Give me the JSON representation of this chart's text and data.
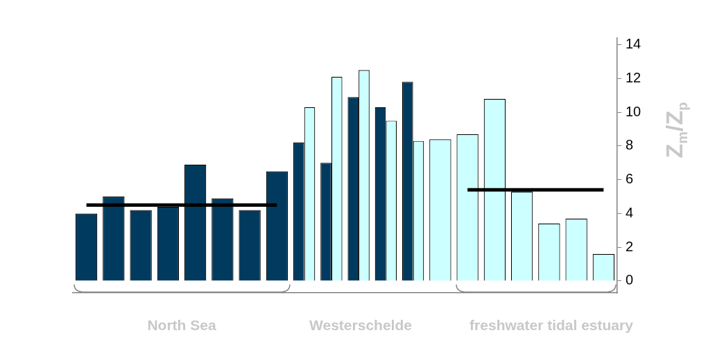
{
  "chart_data": {
    "type": "bar",
    "ylabel": "Z$_{m}$/Z$_{p}$",
    "categories": [
      null,
      null,
      null,
      null,
      null,
      null,
      null,
      null,
      null,
      null,
      null,
      null,
      null,
      null,
      null,
      null,
      null,
      null,
      null,
      null
    ],
    "series": [
      {
        "color": "#003b5f",
        "values": [
          4.0,
          5.0,
          4.2,
          4.4,
          6.9,
          4.9,
          4.2,
          6.5,
          8.2,
          7.0,
          10.9,
          10.3,
          11.8,
          null,
          null,
          null,
          null,
          null,
          null,
          null
        ]
      },
      {
        "color": "#ccffff",
        "values": [
          null,
          null,
          null,
          null,
          null,
          null,
          null,
          null,
          10.3,
          12.1,
          12.5,
          9.5,
          8.3,
          8.4,
          8.7,
          10.8,
          5.3,
          3.4,
          3.7,
          1.6
        ]
      },
      {
        "type": "line",
        "color": "#000000",
        "values": [
          4.5,
          4.5,
          4.5,
          4.5,
          4.5,
          4.5,
          4.5,
          4.5,
          null,
          null,
          null,
          null,
          null,
          null,
          null,
          null,
          null,
          null,
          null,
          null
        ]
      },
      {
        "type": "line",
        "color": "#000000",
        "values": [
          null,
          null,
          null,
          null,
          null,
          null,
          null,
          null,
          null,
          null,
          null,
          null,
          null,
          null,
          5.4,
          5.4,
          5.4,
          5.4,
          5.4,
          5.4
        ]
      }
    ],
    "ylim": [
      -0.7,
      14.4
    ],
    "yticks": [
      0,
      2,
      4,
      6,
      8,
      10,
      12,
      14
    ],
    "grid": false,
    "legend": false,
    "annotations": [
      "North Sea",
      "Westerschelde",
      "freshwater tidal estuary"
    ]
  }
}
